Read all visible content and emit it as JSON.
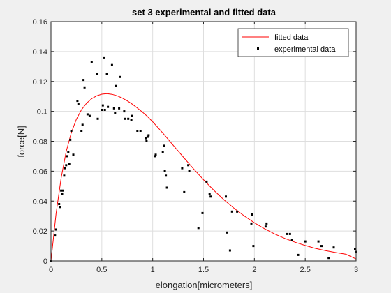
{
  "chart_data": {
    "type": "scatter",
    "title": "set 3 experimental and fitted data",
    "xlabel": "elongation[micrometers]",
    "ylabel": "force[N]",
    "xlim": [
      0,
      3
    ],
    "ylim": [
      0,
      0.16
    ],
    "xticks": [
      0,
      0.5,
      1,
      1.5,
      2,
      2.5,
      3
    ],
    "xtick_labels": [
      "0",
      "0.5",
      "1",
      "1.5",
      "2",
      "2.5",
      "3"
    ],
    "yticks": [
      0,
      0.02,
      0.04,
      0.06,
      0.08,
      0.1,
      0.12,
      0.14,
      0.16
    ],
    "ytick_labels": [
      "0",
      "0.02",
      "0.04",
      "0.06",
      "0.08",
      "0.1",
      "0.12",
      "0.14",
      "0.16"
    ],
    "grid": true,
    "legend_position": "top-right",
    "colors": {
      "fitted": "#ff0000",
      "experimental": "#000000"
    },
    "series": [
      {
        "name": "fitted data",
        "kind": "line",
        "x": [
          0,
          0.05,
          0.1,
          0.15,
          0.2,
          0.25,
          0.3,
          0.35,
          0.4,
          0.45,
          0.5,
          0.55,
          0.6,
          0.65,
          0.7,
          0.75,
          0.8,
          0.85,
          0.9,
          0.95,
          1.0,
          1.1,
          1.2,
          1.3,
          1.4,
          1.5,
          1.6,
          1.7,
          1.8,
          1.9,
          2.0,
          2.1,
          2.2,
          2.3,
          2.4,
          2.5,
          2.6,
          2.7,
          2.8,
          2.9,
          3.0
        ],
        "y": [
          0,
          0.0316,
          0.0555,
          0.0731,
          0.0857,
          0.0947,
          0.1011,
          0.1054,
          0.1085,
          0.1104,
          0.1115,
          0.1118,
          0.1114,
          0.1104,
          0.1089,
          0.107,
          0.1048,
          0.1022,
          0.0995,
          0.0965,
          0.093,
          0.0855,
          0.0775,
          0.0695,
          0.0617,
          0.0543,
          0.0473,
          0.0409,
          0.0352,
          0.0301,
          0.0255,
          0.0215,
          0.018,
          0.015,
          0.0125,
          0.0103,
          0.0084,
          0.0069,
          0.0056,
          0.0045,
          0.0013
        ]
      },
      {
        "name": "experimental data",
        "kind": "scatter",
        "x": [
          0,
          0.04,
          0.05,
          0.08,
          0.09,
          0.1,
          0.11,
          0.12,
          0.13,
          0.14,
          0.15,
          0.16,
          0.17,
          0.18,
          0.19,
          0.2,
          0.22,
          0.26,
          0.27,
          0.3,
          0.31,
          0.32,
          0.33,
          0.36,
          0.38,
          0.4,
          0.45,
          0.46,
          0.5,
          0.51,
          0.52,
          0.53,
          0.55,
          0.56,
          0.6,
          0.62,
          0.63,
          0.64,
          0.67,
          0.68,
          0.72,
          0.73,
          0.76,
          0.79,
          0.8,
          0.85,
          0.88,
          0.93,
          0.94,
          0.95,
          0.96,
          1.02,
          1.03,
          1.1,
          1.11,
          1.12,
          1.13,
          1.14,
          1.29,
          1.31,
          1.35,
          1.36,
          1.45,
          1.49,
          1.53,
          1.56,
          1.57,
          1.72,
          1.73,
          1.76,
          1.78,
          1.83,
          1.97,
          1.98,
          1.99,
          2.11,
          2.12,
          2.32,
          2.35,
          2.37,
          2.43,
          2.5,
          2.63,
          2.66,
          2.73,
          2.78,
          2.99,
          3.0
        ],
        "y": [
          0,
          0.017,
          0.021,
          0.038,
          0.036,
          0.047,
          0.045,
          0.047,
          0.057,
          0.062,
          0.064,
          0.07,
          0.073,
          0.065,
          0.081,
          0.087,
          0.071,
          0.107,
          0.105,
          0.087,
          0.091,
          0.121,
          0.116,
          0.098,
          0.097,
          0.133,
          0.125,
          0.095,
          0.101,
          0.104,
          0.136,
          0.101,
          0.125,
          0.103,
          0.131,
          0.102,
          0.099,
          0.117,
          0.102,
          0.123,
          0.1,
          0.095,
          0.095,
          0.094,
          0.097,
          0.087,
          0.087,
          0.082,
          0.08,
          0.083,
          0.084,
          0.07,
          0.071,
          0.073,
          0.077,
          0.06,
          0.057,
          0.049,
          0.062,
          0.046,
          0.064,
          0.06,
          0.022,
          0.032,
          0.053,
          0.045,
          0.043,
          0.043,
          0.019,
          0.007,
          0.033,
          0.033,
          0.025,
          0.031,
          0.01,
          0.023,
          0.025,
          0.018,
          0.018,
          0.014,
          0.004,
          0.013,
          0.013,
          0.01,
          0.002,
          0.009,
          0.008,
          0.006
        ]
      }
    ]
  }
}
